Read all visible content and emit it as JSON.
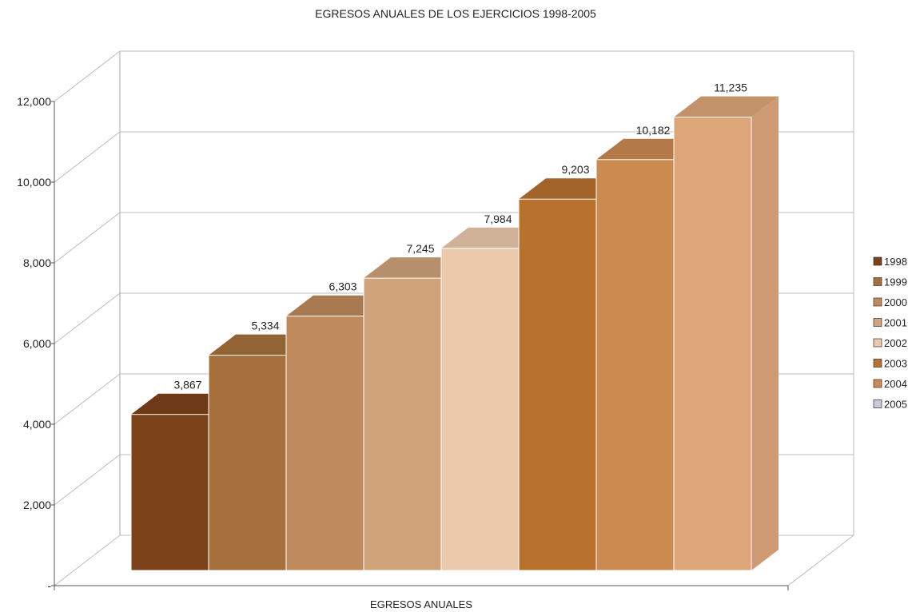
{
  "chart_data": {
    "type": "bar",
    "title": "EGRESOS ANUALES DE LOS EJERCICIOS 1998-2005",
    "xlabel": "EGRESOS ANUALES",
    "ylabel": "",
    "ylim": [
      0,
      12000
    ],
    "yticks": [
      0,
      2000,
      4000,
      6000,
      8000,
      10000,
      12000
    ],
    "ytick_labels": [
      "-",
      "2,000",
      "4,000",
      "6,000",
      "8,000",
      "10,000",
      "12,000"
    ],
    "grid": true,
    "legend_position": "right",
    "category": "EGRESOS ANUALES",
    "series": [
      {
        "name": "1998",
        "value": 3867,
        "label": "3,867",
        "color": "#7B4219"
      },
      {
        "name": "1999",
        "value": 5334,
        "label": "5,334",
        "color": "#A6703C"
      },
      {
        "name": "2000",
        "value": 6303,
        "label": "6,303",
        "color": "#C08B5C"
      },
      {
        "name": "2001",
        "value": 7245,
        "label": "7,245",
        "color": "#CFA47B"
      },
      {
        "name": "2002",
        "value": 7984,
        "label": "7,984",
        "color": "#EBCAAC"
      },
      {
        "name": "2003",
        "value": 9203,
        "label": "9,203",
        "color": "#B87230"
      },
      {
        "name": "2004",
        "value": 10182,
        "label": "10,182",
        "color": "#CB8A50"
      },
      {
        "name": "2005",
        "value": 11235,
        "label": "11,235",
        "color": "#DCA679"
      }
    ],
    "legend_marker_colors": [
      "#7B4219",
      "#A6703C",
      "#C08B5C",
      "#CFA47B",
      "#EBCAAC",
      "#B87230",
      "#CB8A50",
      "#C9C9DC"
    ]
  }
}
